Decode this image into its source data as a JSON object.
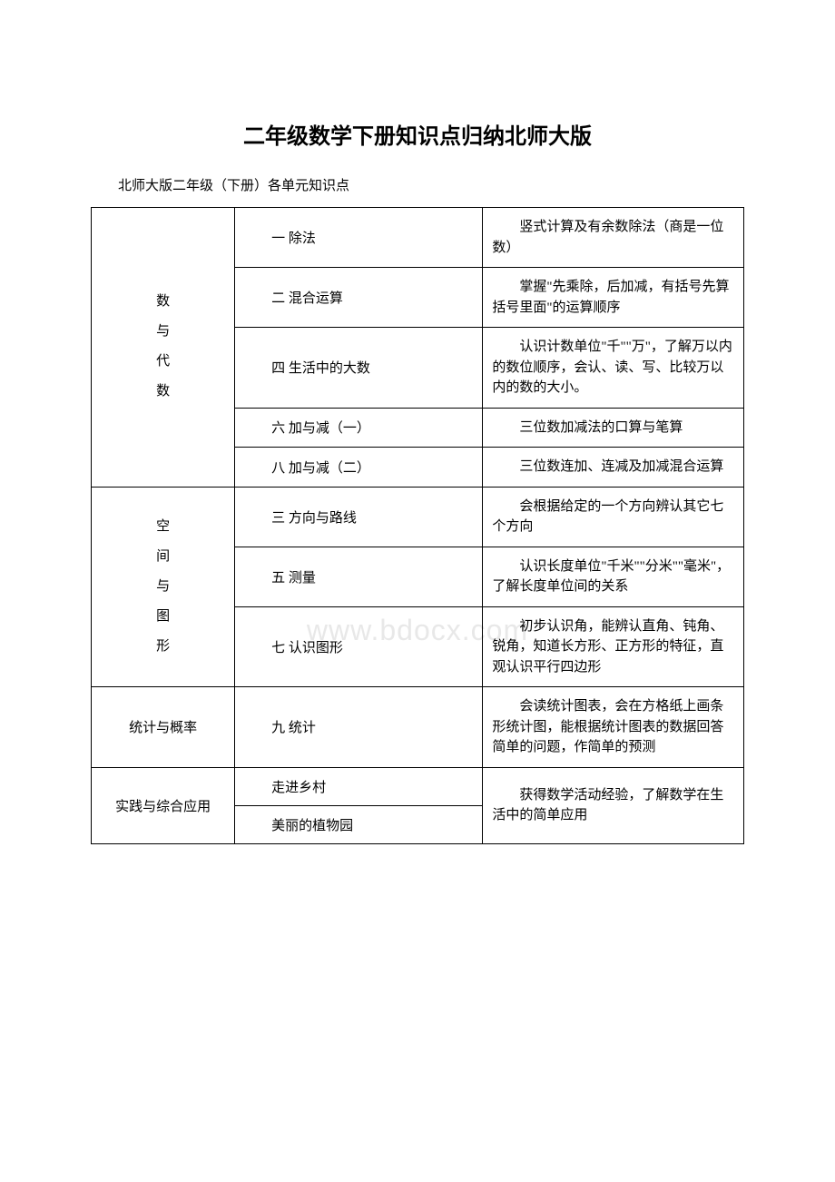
{
  "title": "二年级数学下册知识点归纳北师大版",
  "subtitle": "北师大版二年级（下册）各单元知识点",
  "watermark": "www.bdocx.com",
  "table": {
    "sections": [
      {
        "category_chars": [
          "数",
          "与",
          "代",
          "数"
        ],
        "rows": [
          {
            "unit": "一 除法",
            "desc": "竖式计算及有余数除法（商是一位数）"
          },
          {
            "unit": "二 混合运算",
            "desc": "掌握\"先乘除，后加减，有括号先算括号里面\"的运算顺序"
          },
          {
            "unit": "四 生活中的大数",
            "desc": "认识计数单位\"千\"\"万\"，了解万以内的数位顺序，会认、读、写、比较万以内的数的大小。"
          },
          {
            "unit": "六 加与减（一）",
            "desc": "三位数加减法的口算与笔算"
          },
          {
            "unit": "八 加与减（二）",
            "desc": "三位数连加、连减及加减混合运算"
          }
        ]
      },
      {
        "category_chars": [
          "空",
          "间",
          "与",
          "图",
          "形"
        ],
        "rows": [
          {
            "unit": "三 方向与路线",
            "desc": "会根据给定的一个方向辨认其它七个方向"
          },
          {
            "unit": "五 测量",
            "desc": "认识长度单位\"千米\"\"分米\"\"毫米\"，了解长度单位间的关系"
          },
          {
            "unit": "七 认识图形",
            "desc": "初步认识角，能辨认直角、钝角、锐角，知道长方形、正方形的特征，直观认识平行四边形"
          }
        ]
      },
      {
        "category_text": "统计与概率",
        "rows": [
          {
            "unit": "九 统计",
            "desc": "会读统计图表，会在方格纸上画条形统计图，能根据统计图表的数据回答简单的问题，作简单的预测"
          }
        ]
      },
      {
        "category_text": "实践与综合应用",
        "rows": [
          {
            "unit": "走进乡村"
          },
          {
            "unit": "美丽的植物园"
          }
        ],
        "merged_desc": "获得数学活动经验，了解数学在生活中的简单应用"
      }
    ]
  }
}
